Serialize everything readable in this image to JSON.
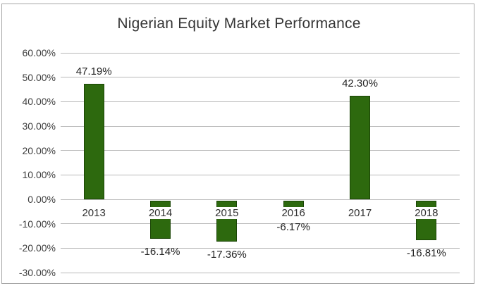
{
  "chart_data": {
    "type": "bar",
    "title": "Nigerian Equity Market Performance",
    "categories": [
      "2013",
      "2014",
      "2015",
      "2016",
      "2017",
      "2018"
    ],
    "values": [
      47.19,
      -16.14,
      -17.36,
      -6.17,
      42.3,
      -16.81
    ],
    "data_labels": [
      "47.19%",
      "-16.14%",
      "-17.36%",
      "-6.17%",
      "42.30%",
      "-16.81%"
    ],
    "xlabel": "",
    "ylabel": "",
    "ylim": [
      -30,
      60
    ],
    "y_tick_values": [
      60,
      50,
      40,
      30,
      20,
      10,
      0,
      -10,
      -20,
      -30
    ],
    "y_tick_labels": [
      "60.00%",
      "50.00%",
      "40.00%",
      "30.00%",
      "20.00%",
      "10.00%",
      "0.00%",
      "-10.00%",
      "-20.00%",
      "-30.00%"
    ],
    "grid": true,
    "legend_position": "none",
    "colors": {
      "bar_fill": "#2d690e",
      "bar_border": "#1a4505",
      "gridline": "#b9b9b9",
      "chart_border": "#a6a6a6",
      "title_text": "#363636",
      "axis_text": "#3d3d3d",
      "label_text": "#1f1f1f",
      "background": "#ffffff"
    }
  }
}
